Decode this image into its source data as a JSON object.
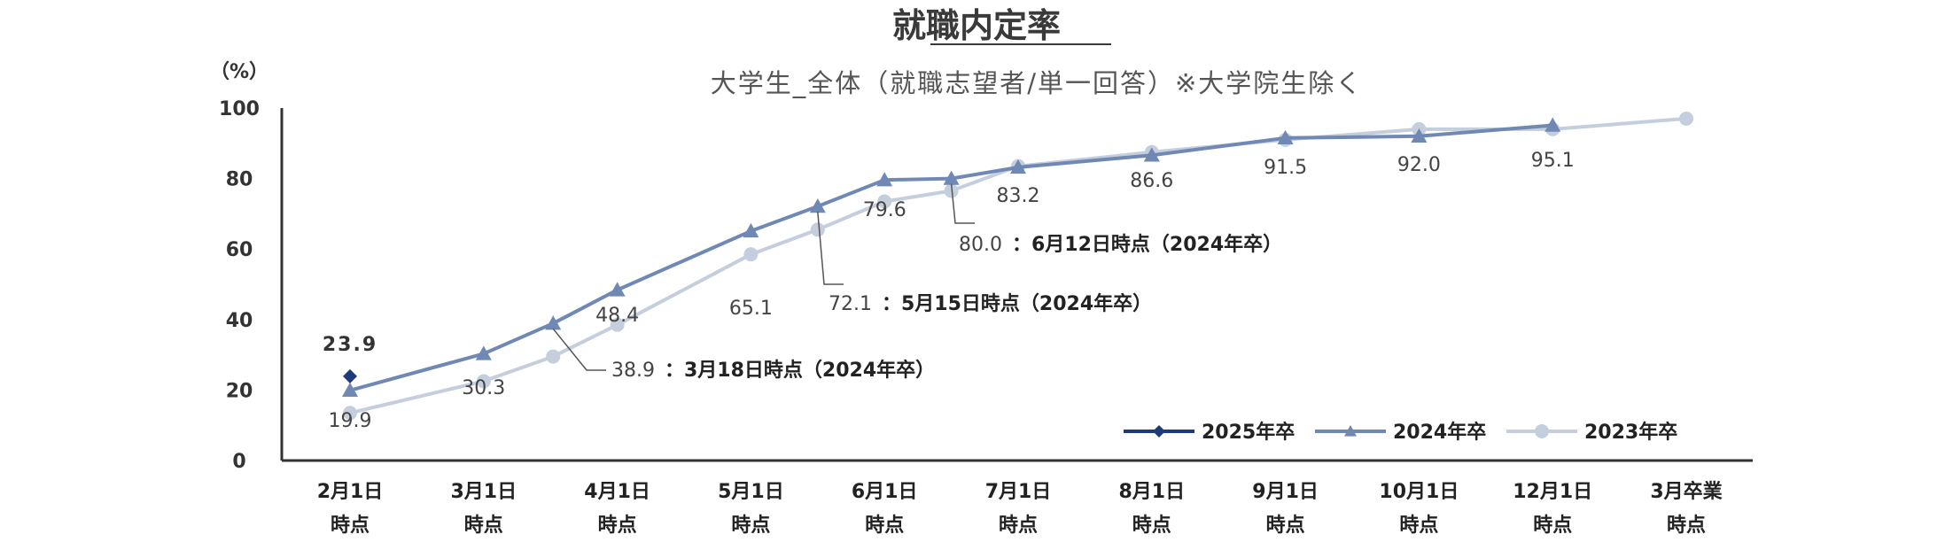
{
  "chart_data": {
    "type": "line",
    "title": "就職内定率",
    "subtitle": "大学生_全体（就職志望者/単一回答）※大学院生除く",
    "ylabel": "（%）",
    "ylim": [
      0,
      100
    ],
    "yticks": [
      "0",
      "20",
      "40",
      "60",
      "80",
      "100"
    ],
    "categories": [
      {
        "line1": "2月1日",
        "line2": "時点"
      },
      {
        "line1": "3月1日",
        "line2": "時点"
      },
      {
        "line1": "4月1日",
        "line2": "時点"
      },
      {
        "line1": "5月1日",
        "line2": "時点"
      },
      {
        "line1": "6月1日",
        "line2": "時点"
      },
      {
        "line1": "7月1日",
        "line2": "時点"
      },
      {
        "line1": "8月1日",
        "line2": "時点"
      },
      {
        "line1": "9月1日",
        "line2": "時点"
      },
      {
        "line1": "10月1日",
        "line2": "時点"
      },
      {
        "line1": "12月1日",
        "line2": "時点"
      },
      {
        "line1": "3月卒業",
        "line2": "時点"
      }
    ],
    "series": [
      {
        "name": "2025年卒",
        "color": "#1f3a78",
        "marker": "diamond",
        "points": [
          {
            "x": 0,
            "y": 23.9
          }
        ],
        "labels": [
          {
            "x": 0,
            "text": "23.9"
          }
        ]
      },
      {
        "name": "2024年卒",
        "color": "#7088b4",
        "marker": "triangle",
        "points": [
          {
            "x": 0,
            "y": 19.9
          },
          {
            "x": 1,
            "y": 30.3
          },
          {
            "x": 1.52,
            "y": 38.9
          },
          {
            "x": 2,
            "y": 48.4
          },
          {
            "x": 3,
            "y": 65.1
          },
          {
            "x": 3.5,
            "y": 72.1
          },
          {
            "x": 4,
            "y": 79.6
          },
          {
            "x": 4.5,
            "y": 80.0
          },
          {
            "x": 5,
            "y": 83.2
          },
          {
            "x": 6,
            "y": 86.6
          },
          {
            "x": 7,
            "y": 91.5
          },
          {
            "x": 8,
            "y": 92.0
          },
          {
            "x": 9,
            "y": 95.1
          }
        ],
        "labels": [
          {
            "x": 0,
            "text": "19.9"
          },
          {
            "x": 1,
            "text": "30.3"
          },
          {
            "x": 2,
            "text": "48.4"
          },
          {
            "x": 3,
            "text": "65.1"
          },
          {
            "x": 4,
            "text": "79.6"
          },
          {
            "x": 5,
            "text": "83.2"
          },
          {
            "x": 6,
            "text": "86.6"
          },
          {
            "x": 7,
            "text": "91.5"
          },
          {
            "x": 8,
            "text": "92.0"
          },
          {
            "x": 9,
            "text": "95.1"
          }
        ]
      },
      {
        "name": "2023年卒",
        "color": "#c5cedd",
        "marker": "circle",
        "points": [
          {
            "x": 0,
            "y": 13.5
          },
          {
            "x": 1,
            "y": 22.5
          },
          {
            "x": 1.52,
            "y": 29.5
          },
          {
            "x": 2,
            "y": 38.5
          },
          {
            "x": 3,
            "y": 58.5
          },
          {
            "x": 3.5,
            "y": 65.5
          },
          {
            "x": 4,
            "y": 73.5
          },
          {
            "x": 4.5,
            "y": 76.5
          },
          {
            "x": 5,
            "y": 83.5
          },
          {
            "x": 6,
            "y": 87.5
          },
          {
            "x": 7,
            "y": 91.0
          },
          {
            "x": 8,
            "y": 94.0
          },
          {
            "x": 9,
            "y": 94.0
          },
          {
            "x": 10,
            "y": 97.0
          }
        ]
      }
    ],
    "annotations": [
      {
        "x": 1.52,
        "y": 38.9,
        "value": "38.9",
        "text": "：3月18日時点（2024年卒）"
      },
      {
        "x": 3.5,
        "y": 72.1,
        "value": "72.1",
        "text": "：5月15日時点（2024年卒）"
      },
      {
        "x": 4.5,
        "y": 80.0,
        "value": "80.0",
        "text": "：6月12日時点（2024年卒）"
      }
    ],
    "legend": {
      "position": "bottom-right"
    },
    "grid": false
  }
}
